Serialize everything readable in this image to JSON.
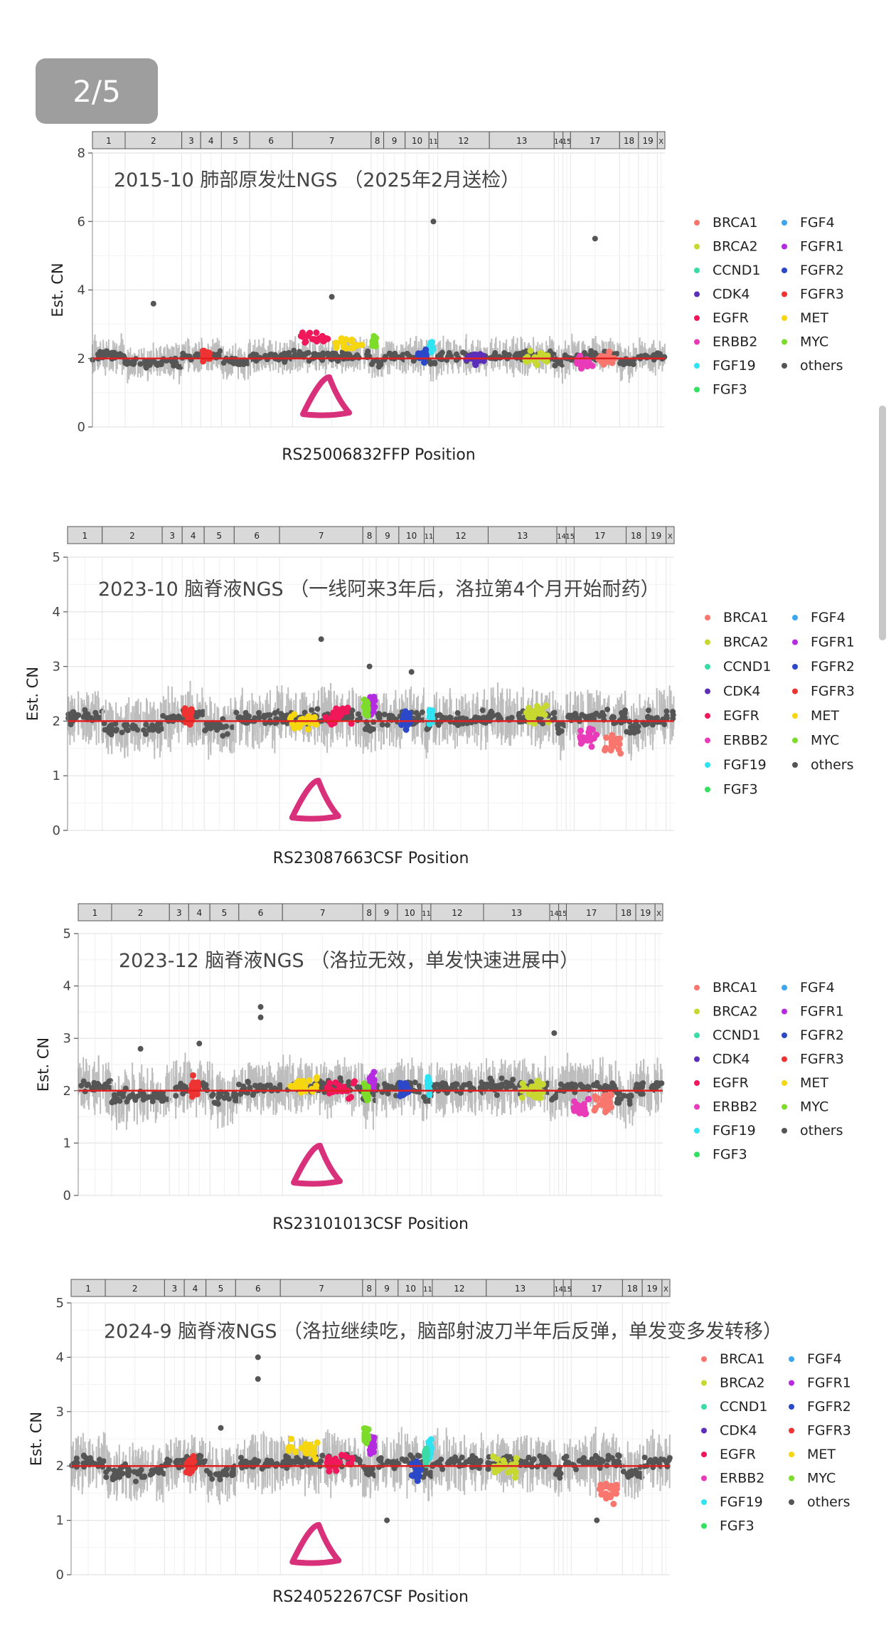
{
  "page_indicator": "2/5",
  "colors": {
    "BRCA1": "#f8766d",
    "BRCA2": "#c7d930",
    "CCND1": "#3bdba5",
    "CDK4": "#5b2fb8",
    "EGFR": "#f0185a",
    "ERBB2": "#e93ab9",
    "FGF19": "#2fe3f2",
    "FGF3": "#35e060",
    "FGF4": "#3ea5ef",
    "FGFR1": "#b52be0",
    "FGFR2": "#2a48c8",
    "FGFR3": "#ee3333",
    "MET": "#f5d60f",
    "MYC": "#7ddc2a",
    "others": "#555555",
    "baseline": "#e02020",
    "marker": "#d8307a",
    "cloud": "#bdbdbd"
  },
  "chromosomes": [
    "1",
    "2",
    "3",
    "4",
    "5",
    "6",
    "7",
    "8",
    "9",
    "10",
    "11",
    "12",
    "13",
    "14",
    "15",
    "17",
    "18",
    "19",
    "X"
  ],
  "legend": {
    "col1": [
      "BRCA1",
      "BRCA2",
      "CCND1",
      "CDK4",
      "EGFR",
      "ERBB2",
      "FGF19",
      "FGF3"
    ],
    "col2": [
      "FGF4",
      "FGFR1",
      "FGFR2",
      "FGFR3",
      "MET",
      "MYC",
      "others"
    ]
  },
  "chart_data": [
    {
      "type": "scatter",
      "title": "2015-10 肺部原发灶NGS （2025年2月送检）",
      "xlabel": "RS25006832FFP Position",
      "ylabel": "Est. CN",
      "ylim": [
        0,
        8
      ],
      "yticks": [
        0,
        2,
        4,
        6,
        8
      ],
      "baseline": 2,
      "gene_series": [
        {
          "name": "EGFR",
          "chrom": "7",
          "cn": 2.6
        },
        {
          "name": "MET",
          "chrom": "7",
          "cn": 2.4
        },
        {
          "name": "MYC",
          "chrom": "8",
          "cn": 2.5
        },
        {
          "name": "CDK4",
          "chrom": "12",
          "cn": 2.0
        },
        {
          "name": "FGF19",
          "chrom": "11",
          "cn": 2.3
        },
        {
          "name": "BRCA2",
          "chrom": "13",
          "cn": 2.0
        },
        {
          "name": "ERBB2",
          "chrom": "17",
          "cn": 1.9
        },
        {
          "name": "BRCA1",
          "chrom": "17",
          "cn": 2.0
        },
        {
          "name": "FGFR3",
          "chrom": "4",
          "cn": 2.1
        },
        {
          "name": "FGFR2",
          "chrom": "10",
          "cn": 2.1
        }
      ],
      "outliers": [
        [
          11,
          6.0
        ],
        [
          17,
          5.5
        ],
        [
          2,
          3.6
        ],
        [
          7,
          3.8
        ]
      ],
      "marker_chrom": "7"
    },
    {
      "type": "scatter",
      "title": "2023-10 脑脊液NGS （一线阿来3年后，洛拉第4个月开始耐药）",
      "xlabel": "RS23087663CSF Position",
      "ylabel": "Est. CN",
      "ylim": [
        0,
        5
      ],
      "yticks": [
        0,
        1,
        2,
        3,
        4,
        5
      ],
      "baseline": 2,
      "gene_series": [
        {
          "name": "FGFR3",
          "chrom": "4",
          "cn": 2.1
        },
        {
          "name": "EGFR",
          "chrom": "7",
          "cn": 2.1
        },
        {
          "name": "MET",
          "chrom": "7",
          "cn": 2.0
        },
        {
          "name": "FGFR1",
          "chrom": "8",
          "cn": 2.3
        },
        {
          "name": "MYC",
          "chrom": "8",
          "cn": 2.2
        },
        {
          "name": "FGF19",
          "chrom": "11",
          "cn": 2.1
        },
        {
          "name": "FGFR2",
          "chrom": "10",
          "cn": 2.0
        },
        {
          "name": "BRCA2",
          "chrom": "13",
          "cn": 2.1
        },
        {
          "name": "ERBB2",
          "chrom": "17",
          "cn": 1.7
        },
        {
          "name": "BRCA1",
          "chrom": "17",
          "cn": 1.6
        }
      ],
      "outliers": [
        [
          7,
          3.5
        ],
        [
          8,
          3.0
        ],
        [
          10,
          2.9
        ]
      ],
      "marker_chrom": "7"
    },
    {
      "type": "scatter",
      "title": "2023-12 脑脊液NGS （洛拉无效，单发快速进展中）",
      "xlabel": "RS23101013CSF Position",
      "ylabel": "Est. CN",
      "ylim": [
        0,
        5
      ],
      "yticks": [
        0,
        1,
        2,
        3,
        4,
        5
      ],
      "baseline": 2,
      "gene_series": [
        {
          "name": "FGFR3",
          "chrom": "4",
          "cn": 2.1
        },
        {
          "name": "EGFR",
          "chrom": "7",
          "cn": 2.0
        },
        {
          "name": "MET",
          "chrom": "7",
          "cn": 2.1
        },
        {
          "name": "FGFR1",
          "chrom": "8",
          "cn": 2.2
        },
        {
          "name": "MYC",
          "chrom": "8",
          "cn": 2.0
        },
        {
          "name": "FGF19",
          "chrom": "11",
          "cn": 2.1
        },
        {
          "name": "FGFR2",
          "chrom": "10",
          "cn": 2.0
        },
        {
          "name": "BRCA2",
          "chrom": "13",
          "cn": 2.0
        },
        {
          "name": "ERBB2",
          "chrom": "17",
          "cn": 1.7
        },
        {
          "name": "BRCA1",
          "chrom": "17",
          "cn": 1.8
        }
      ],
      "outliers": [
        [
          6,
          3.4
        ],
        [
          6,
          3.6
        ],
        [
          2,
          2.8
        ],
        [
          14,
          3.1
        ],
        [
          4,
          2.9
        ]
      ],
      "marker_chrom": "7"
    },
    {
      "type": "scatter",
      "title": "2024-9 脑脊液NGS （洛拉继续吃，脑部射波刀半年后反弹，单发变多发转移）",
      "xlabel": "RS24052267CSF Position",
      "ylabel": "Est. CN",
      "ylim": [
        0,
        5
      ],
      "yticks": [
        0,
        1,
        2,
        3,
        4,
        5
      ],
      "baseline": 2,
      "gene_series": [
        {
          "name": "FGFR3",
          "chrom": "4",
          "cn": 2.0
        },
        {
          "name": "EGFR",
          "chrom": "7",
          "cn": 2.1
        },
        {
          "name": "MET",
          "chrom": "7",
          "cn": 2.3
        },
        {
          "name": "FGFR1",
          "chrom": "8",
          "cn": 2.4
        },
        {
          "name": "MYC",
          "chrom": "8",
          "cn": 2.6
        },
        {
          "name": "FGF19",
          "chrom": "11",
          "cn": 2.3
        },
        {
          "name": "CCND1",
          "chrom": "11",
          "cn": 2.2
        },
        {
          "name": "FGFR2",
          "chrom": "10",
          "cn": 1.9
        },
        {
          "name": "BRCA2",
          "chrom": "13",
          "cn": 2.0
        },
        {
          "name": "BRCA1",
          "chrom": "17",
          "cn": 1.5
        }
      ],
      "outliers": [
        [
          6,
          4.0
        ],
        [
          6,
          3.6
        ],
        [
          5,
          2.7
        ],
        [
          9,
          1.0
        ],
        [
          17,
          1.0
        ]
      ],
      "marker_chrom": "7"
    }
  ]
}
